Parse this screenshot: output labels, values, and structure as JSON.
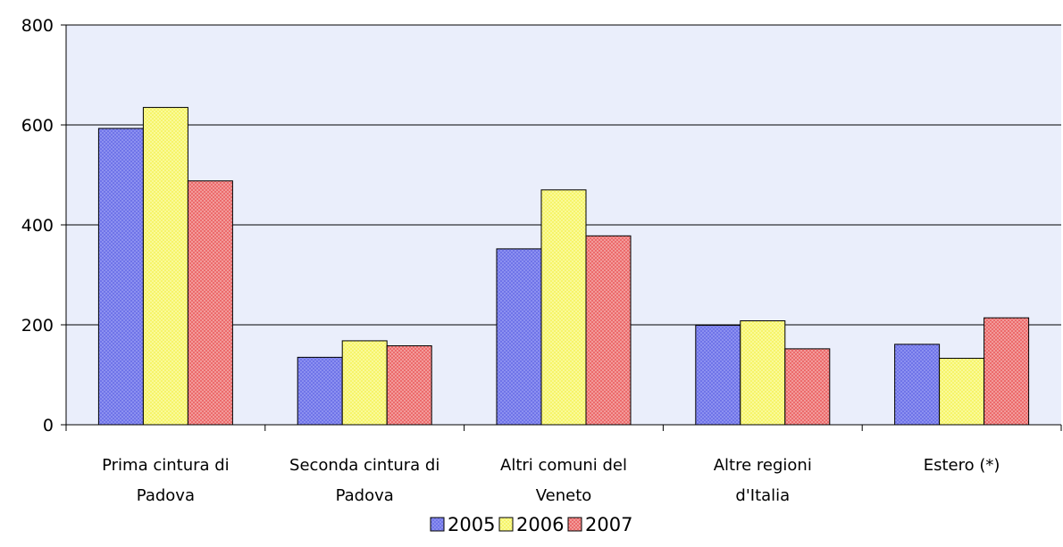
{
  "chart_data": {
    "type": "bar",
    "title": "",
    "xlabel": "",
    "ylabel": "",
    "ylim": [
      0,
      800
    ],
    "yticks": [
      0,
      200,
      400,
      600,
      800
    ],
    "grid": true,
    "legend_position": "bottom",
    "categories": [
      [
        "Prima cintura di",
        "Padova"
      ],
      [
        "Seconda cintura di",
        "Padova"
      ],
      [
        "Altri comuni del",
        "Veneto"
      ],
      [
        "Altre regioni",
        "d'Italia"
      ],
      [
        "Estero (*)"
      ]
    ],
    "series": [
      {
        "name": "2005",
        "color": "#6f74e8",
        "values": [
          593,
          135,
          352,
          199,
          161
        ]
      },
      {
        "name": "2006",
        "color": "#f6f46a",
        "values": [
          635,
          168,
          470,
          208,
          133
        ]
      },
      {
        "name": "2007",
        "color": "#ec6b6b",
        "values": [
          488,
          158,
          378,
          152,
          214
        ]
      }
    ],
    "plot_background": "#eaeefb"
  }
}
